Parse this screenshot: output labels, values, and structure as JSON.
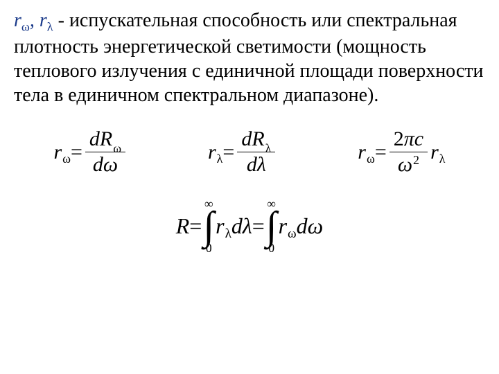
{
  "text": {
    "r_omega": "r",
    "sub_omega": "ω",
    "comma": ", ",
    "r_lambda": "r",
    "sub_lambda": "λ",
    "desc": " - испускательная способность или спектральная плотность энергетической светимости (мощность теплового излучения с единичной площади поверхности тела в единичном спектральном диапазоне)."
  },
  "eq1": {
    "lhs_r": "r",
    "lhs_sub": "ω",
    "eq": " = ",
    "num_d": "d",
    "num_R": "R",
    "num_sub": "ω",
    "den_d": "d",
    "den_var": "ω"
  },
  "eq2": {
    "lhs_r": "r",
    "lhs_sub": "λ",
    "eq": " = ",
    "num_d": "d",
    "num_R": "R",
    "num_sub": "λ",
    "den_d": "d",
    "den_var": "λ"
  },
  "eq3": {
    "lhs_r": "r",
    "lhs_sub": "ω",
    "eq": " = ",
    "num_2": "2",
    "num_pi": "π",
    "num_c": "c",
    "den_var": "ω",
    "den_sup": "2",
    "rhs_r": "r",
    "rhs_sub": "λ"
  },
  "eq4": {
    "R": "R",
    "eq": " = ",
    "top": "∞",
    "intsym": "∫",
    "bot": "0",
    "r1": "r",
    "r1_sub": "λ",
    "d1": "d",
    "d1_var": "λ",
    "eq2": " = ",
    "r2": "r",
    "r2_sub": "ω",
    "d2": "d",
    "d2_var": "ω"
  },
  "colors": {
    "symbol": "#1a3a8a",
    "text": "#000000",
    "bg": "#ffffff"
  }
}
